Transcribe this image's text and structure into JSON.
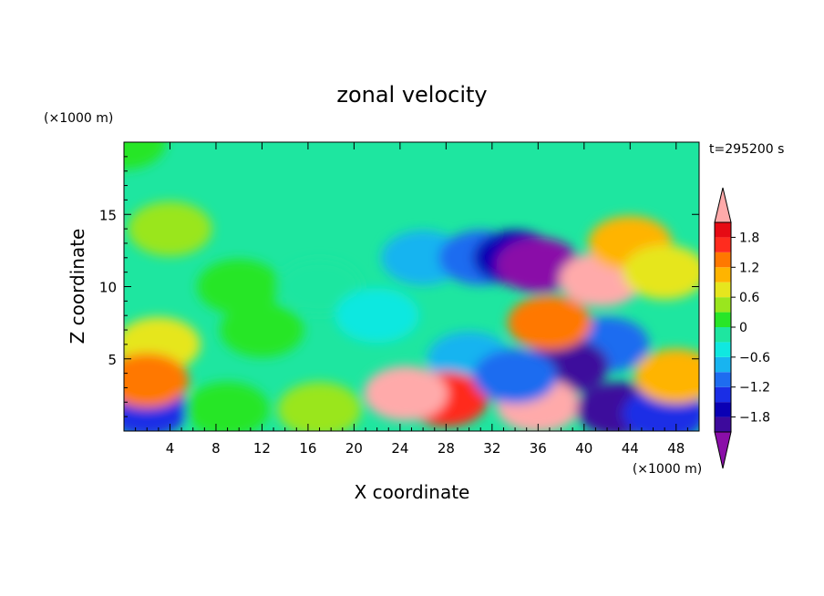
{
  "chart_data": {
    "type": "heatmap",
    "title": "zonal velocity",
    "xlabel": "X coordinate",
    "ylabel": "Z coordinate",
    "x_unit": "(×1000 m)",
    "y_unit": "(×1000 m)",
    "time_label": "t=295200 s",
    "xlim": [
      0,
      50
    ],
    "ylim": [
      0,
      20
    ],
    "x_ticks": [
      4,
      8,
      12,
      16,
      20,
      24,
      28,
      32,
      36,
      40,
      44,
      48
    ],
    "y_ticks": [
      5,
      10,
      15
    ],
    "colorbar": {
      "levels": [
        -2.1,
        -1.8,
        -1.5,
        -1.2,
        -0.9,
        -0.6,
        -0.3,
        0,
        0.3,
        0.6,
        0.9,
        1.2,
        1.5,
        1.8,
        2.1
      ],
      "tick_labels": [
        "1.8",
        "1.2",
        "0.6",
        "0",
        "−0.6",
        "−1.2",
        "−1.8"
      ],
      "tick_values": [
        1.8,
        1.2,
        0.6,
        0,
        -0.6,
        -1.2,
        -1.8
      ],
      "colors": [
        "#8a0ea8",
        "#3d0a9c",
        "#0a00b4",
        "#1a2ee6",
        "#1e6cf0",
        "#18b4f0",
        "#10e8e0",
        "#1ee6a0",
        "#28e628",
        "#9ae61e",
        "#e6e61e",
        "#ffb400",
        "#ff7800",
        "#ff2c1e",
        "#e60a14",
        "#ffaaaa"
      ]
    },
    "features": [
      {
        "x": 0,
        "z": 20,
        "value": 0.05
      },
      {
        "x": 10,
        "z": 10,
        "value": 0.25
      },
      {
        "x": 4,
        "z": 14,
        "value": 0.5
      },
      {
        "x": 3,
        "z": 6,
        "value": 0.6
      },
      {
        "x": 12,
        "z": 7,
        "value": 0.2
      },
      {
        "x": 17,
        "z": 10,
        "value": -0.3
      },
      {
        "x": 22,
        "z": 8,
        "value": -0.6
      },
      {
        "x": 26,
        "z": 12,
        "value": -0.9
      },
      {
        "x": 31,
        "z": 12,
        "value": -1.2
      },
      {
        "x": 34,
        "z": 12,
        "value": -1.6
      },
      {
        "x": 36,
        "z": 11.5,
        "value": -2.2
      },
      {
        "x": 30,
        "z": 5,
        "value": -0.9
      },
      {
        "x": 41.5,
        "z": 10.5,
        "value": 2.2
      },
      {
        "x": 44,
        "z": 13,
        "value": 1.1
      },
      {
        "x": 47,
        "z": 11,
        "value": 0.7
      },
      {
        "x": 42,
        "z": 6,
        "value": -1.0
      },
      {
        "x": 38.5,
        "z": 4.5,
        "value": -2.0
      },
      {
        "x": 37,
        "z": 7.5,
        "value": 1.4
      },
      {
        "x": 36,
        "z": 1.8,
        "value": 2.2
      },
      {
        "x": 28,
        "z": 2.2,
        "value": 1.6
      },
      {
        "x": 24.5,
        "z": 2.6,
        "value": 2.1
      },
      {
        "x": 43,
        "z": 1.5,
        "value": -2.1
      },
      {
        "x": 47,
        "z": 1.2,
        "value": -1.3
      },
      {
        "x": 2,
        "z": 1.5,
        "value": -1.5
      },
      {
        "x": 9,
        "z": 1.5,
        "value": 0.2
      },
      {
        "x": 17,
        "z": 1.5,
        "value": 0.5
      },
      {
        "x": 2,
        "z": 3.5,
        "value": 1.2
      },
      {
        "x": 34,
        "z": 3.8,
        "value": -1.1
      },
      {
        "x": 48,
        "z": 3.8,
        "value": 1.0
      }
    ]
  }
}
